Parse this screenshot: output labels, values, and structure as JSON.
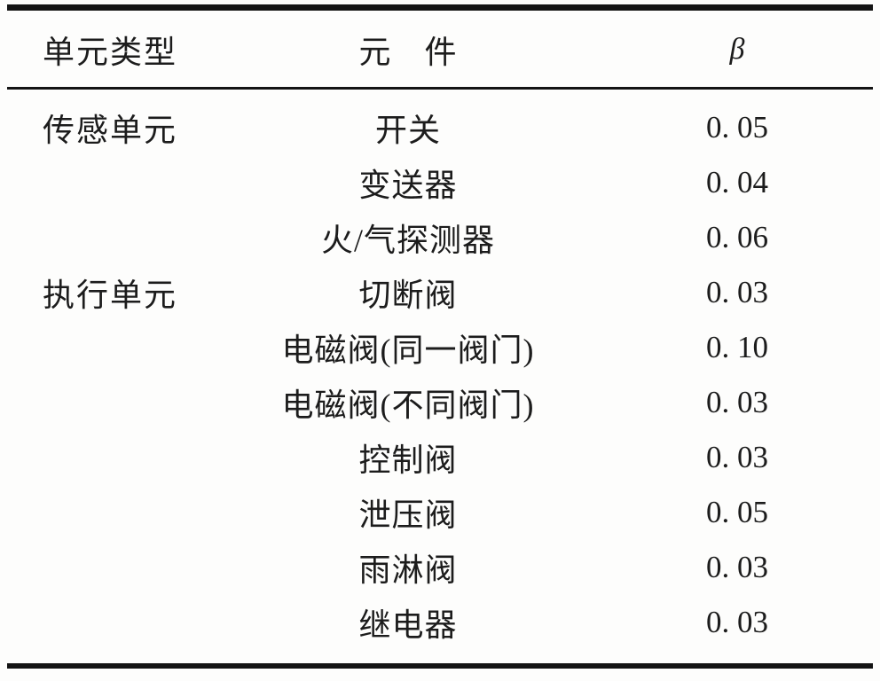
{
  "page": {
    "background": "#fdfdfc",
    "text_color": "#1c1c1c",
    "rule_color": "#141414"
  },
  "table": {
    "header": {
      "unit_type": "单元类型",
      "component": "元　件",
      "beta": "β"
    },
    "rows": [
      {
        "unit_type": "传感单元",
        "component": "开关",
        "beta": "0. 05"
      },
      {
        "unit_type": "",
        "component": "变送器",
        "beta": "0. 04"
      },
      {
        "unit_type": "",
        "component": "火/气探测器",
        "beta": "0. 06"
      },
      {
        "unit_type": "执行单元",
        "component": "切断阀",
        "beta": "0. 03"
      },
      {
        "unit_type": "",
        "component": "电磁阀(同一阀门)",
        "beta": "0. 10"
      },
      {
        "unit_type": "",
        "component": "电磁阀(不同阀门)",
        "beta": "0. 03"
      },
      {
        "unit_type": "",
        "component": "控制阀",
        "beta": "0. 03"
      },
      {
        "unit_type": "",
        "component": "泄压阀",
        "beta": "0. 05"
      },
      {
        "unit_type": "",
        "component": "雨淋阀",
        "beta": "0. 03"
      },
      {
        "unit_type": "",
        "component": "继电器",
        "beta": "0. 03"
      }
    ]
  }
}
